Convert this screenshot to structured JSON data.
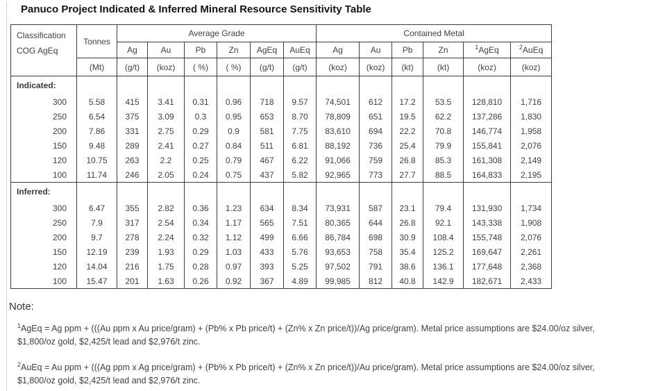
{
  "page": {
    "title": "Panuco Project Indicated & Inferred Mineral Resource Sensitivity Table"
  },
  "table": {
    "header": {
      "classification_line1": "Classification",
      "classification_line2": "COG AgEq",
      "tonnes": "Tonnes",
      "avg_grade": "Average Grade",
      "contained_metal": "Contained Metal",
      "grade_cols": [
        "Ag",
        "Au",
        "Pb",
        "Zn",
        "AgEq",
        "AuEq"
      ],
      "metal_cols": [
        "Ag",
        "Au",
        "Pb",
        "Zn",
        "AgEq",
        "AuEq"
      ],
      "metal_sups": [
        "",
        "",
        "",
        "",
        "1",
        "2"
      ],
      "units": [
        "(Mt)",
        "(g/t)",
        "(koz)",
        "( %)",
        "( %)",
        "(g/t)",
        "(g/t)",
        "(koz)",
        "(koz)",
        "(kt)",
        "(kt)",
        "(koz)",
        "(koz)"
      ]
    },
    "sections": [
      {
        "label": "Indicated:",
        "rows": [
          [
            "300",
            "5.58",
            "415",
            "3.41",
            "0.31",
            "0.96",
            "718",
            "9.57",
            "74,501",
            "612",
            "17.2",
            "53.5",
            "128,810",
            "1,716"
          ],
          [
            "250",
            "6.54",
            "375",
            "3.09",
            "0.3",
            "0.95",
            "653",
            "8.70",
            "78,809",
            "651",
            "19.5",
            "62.2",
            "137,286",
            "1,830"
          ],
          [
            "200",
            "7.86",
            "331",
            "2.75",
            "0.29",
            "0.9",
            "581",
            "7.75",
            "83,610",
            "694",
            "22.2",
            "70.8",
            "146,774",
            "1,958"
          ],
          [
            "150",
            "9.48",
            "289",
            "2.41",
            "0.27",
            "0.84",
            "511",
            "6.81",
            "88,192",
            "736",
            "25.4",
            "79.9",
            "155,841",
            "2,076"
          ],
          [
            "120",
            "10.75",
            "263",
            "2.2",
            "0.25",
            "0.79",
            "467",
            "6.22",
            "91,066",
            "759",
            "26.8",
            "85.3",
            "161,308",
            "2,149"
          ],
          [
            "100",
            "11.74",
            "246",
            "2.05",
            "0.24",
            "0.75",
            "437",
            "5.82",
            "92,965",
            "773",
            "27.7",
            "88.5",
            "164,833",
            "2,195"
          ]
        ]
      },
      {
        "label": "Inferred:",
        "rows": [
          [
            "300",
            "6.47",
            "355",
            "2.82",
            "0.36",
            "1.23",
            "634",
            "8.34",
            "73,931",
            "587",
            "23.1",
            "79.4",
            "131,930",
            "1,734"
          ],
          [
            "250",
            "7.9",
            "317",
            "2.54",
            "0.34",
            "1.17",
            "565",
            "7.51",
            "80,365",
            "644",
            "26.8",
            "92.1",
            "143,338",
            "1,908"
          ],
          [
            "200",
            "9.7",
            "278",
            "2.24",
            "0.32",
            "1.12",
            "499",
            "6.66",
            "86,784",
            "698",
            "30.9",
            "108.4",
            "155,748",
            "2,076"
          ],
          [
            "150",
            "12.19",
            "239",
            "1.93",
            "0.29",
            "1.03",
            "433",
            "5.76",
            "93,653",
            "758",
            "35.4",
            "125.2",
            "169,647",
            "2,261"
          ],
          [
            "120",
            "14.04",
            "216",
            "1.75",
            "0.28",
            "0.97",
            "393",
            "5.25",
            "97,502",
            "791",
            "38.6",
            "136.1",
            "177,648",
            "2,368"
          ],
          [
            "100",
            "15.47",
            "201",
            "1.63",
            "0.26",
            "0.92",
            "367",
            "4.89",
            "99,985",
            "812",
            "40.8",
            "142.9",
            "182,671",
            "2,433"
          ]
        ]
      }
    ]
  },
  "notes": {
    "heading": "Note:",
    "items": [
      {
        "sup": "1",
        "text": "AgEq = Ag ppm + (((Au ppm x Au price/gram) + (Pb% x Pb price/t) + (Zn% x Zn price/t))/Ag price/gram). Metal price assumptions are $24.00/oz silver, $1,800/oz gold, $2,425/t lead and $2,976/t zinc."
      },
      {
        "sup": "2",
        "text": "AuEq = Au ppm + (((Ag ppm x Ag price/gram) + (Pb% x Pb price/t) + (Zn% x Zn price/t))/Au price/gram). Metal price assumptions are $24.00/oz silver, $1,800/oz gold, $2,425/t lead and $2,976/t zinc."
      }
    ]
  }
}
